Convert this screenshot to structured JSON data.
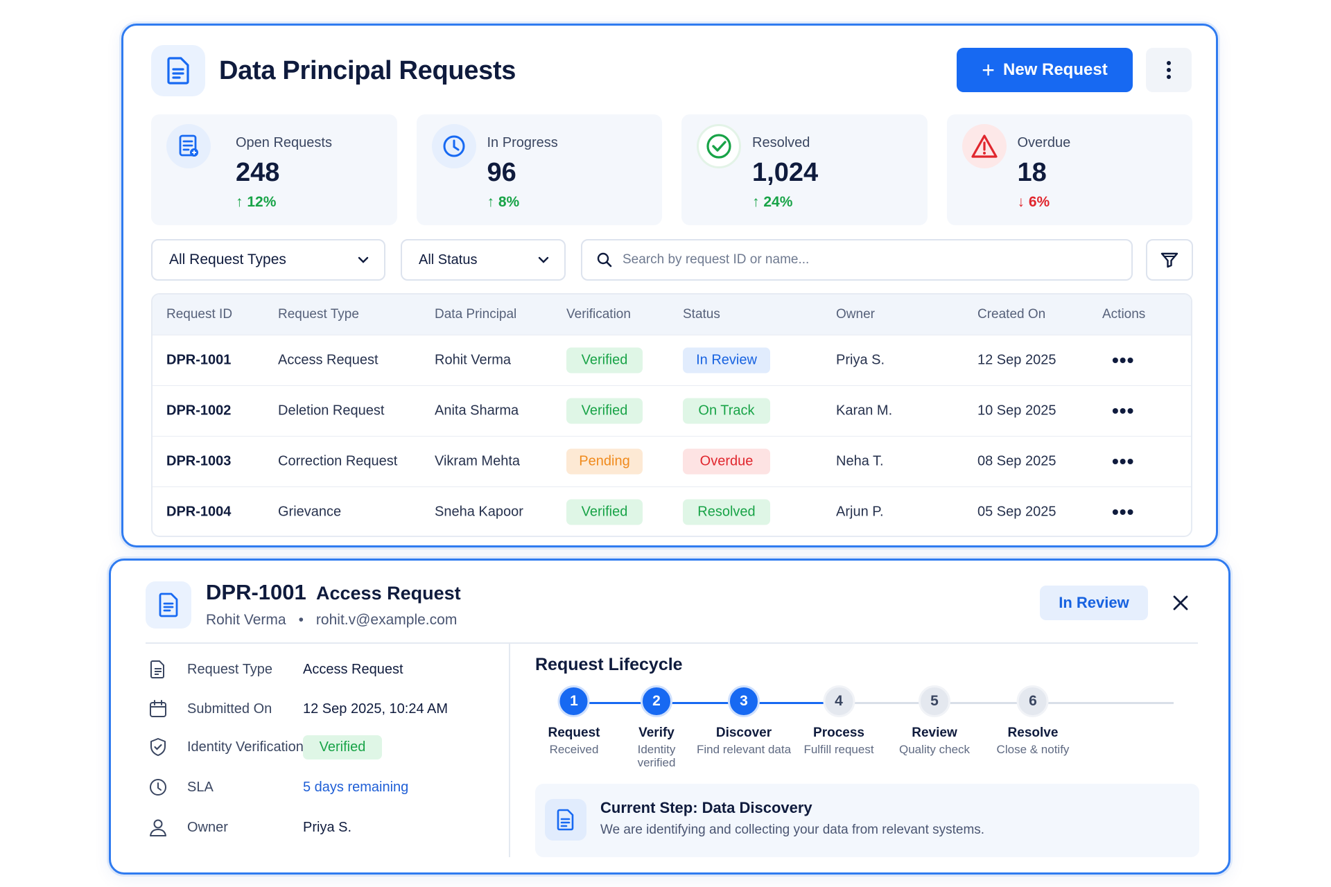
{
  "header": {
    "title": "Data Principal Requests",
    "new_request_label": "New Request"
  },
  "kpis": [
    {
      "label": "Open Requests",
      "value": "248",
      "delta": "12%",
      "direction": "up",
      "icon": "document-icon",
      "color": "#1769f2"
    },
    {
      "label": "In Progress",
      "value": "96",
      "delta": "8%",
      "direction": "up",
      "icon": "clock-icon",
      "color": "#1769f2"
    },
    {
      "label": "Resolved",
      "value": "1,024",
      "delta": "24%",
      "direction": "up",
      "icon": "check-circle-icon",
      "color": "#18a347"
    },
    {
      "label": "Overdue",
      "value": "18",
      "delta": "6%",
      "direction": "down",
      "icon": "warning-icon",
      "color": "#e0262d"
    }
  ],
  "filters": {
    "request_type": "All Request Types",
    "status": "All Status",
    "search_placeholder": "Search by request ID or name..."
  },
  "table": {
    "columns": [
      "Request ID",
      "Request Type",
      "Data Principal",
      "Verification",
      "Status",
      "Owner",
      "Created On",
      "Actions"
    ],
    "rows": [
      {
        "id": "DPR-1001",
        "type": "Access Request",
        "principal": "Rohit Verma",
        "verification": "Verified",
        "status": "In Review",
        "owner": "Priya S.",
        "created": "12 Sep 2025"
      },
      {
        "id": "DPR-1002",
        "type": "Deletion Request",
        "principal": "Anita Sharma",
        "verification": "Verified",
        "status": "On Track",
        "owner": "Karan M.",
        "created": "10 Sep 2025"
      },
      {
        "id": "DPR-1003",
        "type": "Correction Request",
        "principal": "Vikram Mehta",
        "verification": "Pending",
        "status": "Overdue",
        "owner": "Neha T.",
        "created": "08 Sep 2025"
      },
      {
        "id": "DPR-1004",
        "type": "Grievance",
        "principal": "Sneha Kapoor",
        "verification": "Verified",
        "status": "Resolved",
        "owner": "Arjun P.",
        "created": "05 Sep 2025"
      }
    ],
    "actions_glyph": "•••"
  },
  "detail": {
    "id": "DPR-1001",
    "type": "Access Request",
    "principal": "Rohit Verma",
    "separator": "•",
    "email": "rohit.v@example.com",
    "status": "In Review",
    "fields": [
      {
        "label": "Request Type",
        "value": "Access Request"
      },
      {
        "label": "Submitted On",
        "value": "12 Sep 2025, 10:24 AM"
      },
      {
        "label": "Identity Verification",
        "value": "Verified"
      },
      {
        "label": "SLA",
        "value": "5 days remaining"
      },
      {
        "label": "Owner",
        "value": "Priya S."
      }
    ],
    "lifecycle_title": "Request Lifecycle",
    "steps": [
      {
        "num": "1",
        "title": "Request",
        "sub": "Received",
        "done": true
      },
      {
        "num": "2",
        "title": "Verify",
        "sub": "Identity verified",
        "done": true
      },
      {
        "num": "3",
        "title": "Discover",
        "sub": "Find relevant data",
        "done": true
      },
      {
        "num": "4",
        "title": "Process",
        "sub": "Fulfill request",
        "done": false
      },
      {
        "num": "5",
        "title": "Review",
        "sub": "Quality check",
        "done": false
      },
      {
        "num": "6",
        "title": "Resolve",
        "sub": "Close & notify",
        "done": false
      }
    ],
    "current_step_title": "Current Step: Data Discovery",
    "current_step_desc": "We are identifying and collecting your data from relevant systems."
  },
  "colors": {
    "primary": "#1769f2",
    "success": "#18a347",
    "warning": "#f08a1c",
    "danger": "#e0262d"
  }
}
